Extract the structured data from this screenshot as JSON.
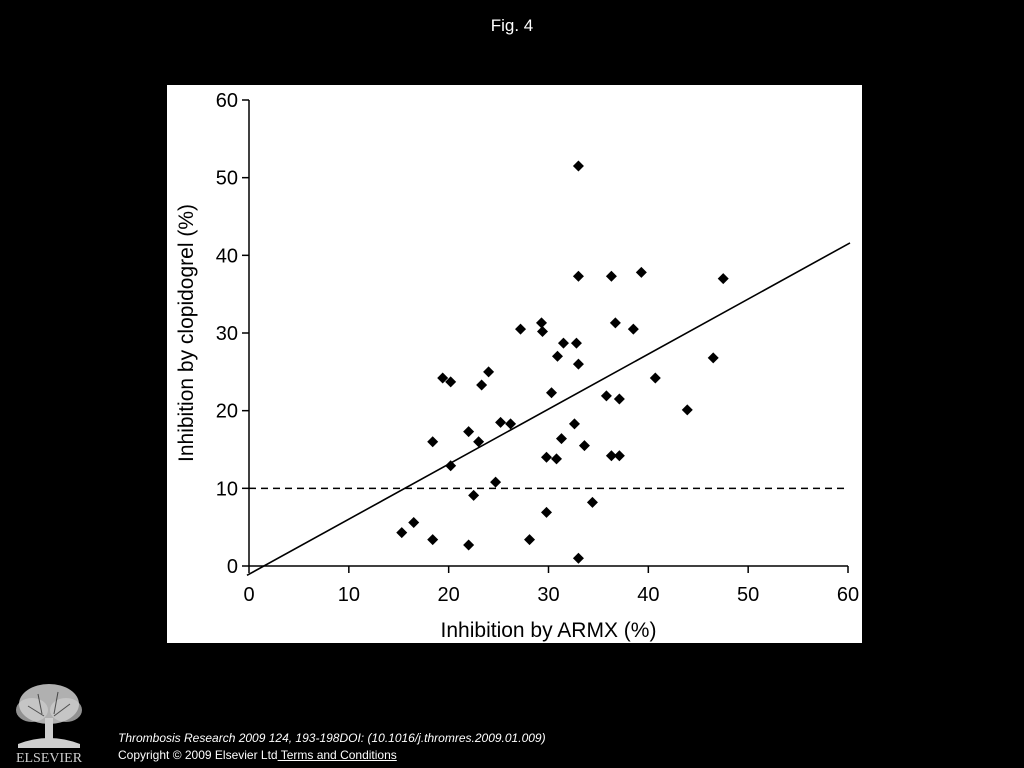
{
  "figure": {
    "title": "Fig. 4",
    "citation": "Thrombosis Research 2009 124, 193-198DOI: (10.1016/j.thromres.2009.01.009)",
    "copyright": "Copyright © 2009 Elsevier Ltd",
    "terms_link": " Terms and Conditions",
    "publisher_logo_text": "ELSEVIER"
  },
  "chart_data": {
    "type": "scatter",
    "title": "",
    "xlabel": "Inhibition by ARMX (%)",
    "ylabel": "Inhibition by clopidogrel (%)",
    "xlim": [
      0,
      60
    ],
    "ylim": [
      0,
      60
    ],
    "xticks": [
      0,
      10,
      20,
      30,
      40,
      50,
      60
    ],
    "yticks": [
      0,
      10,
      20,
      30,
      40,
      50,
      60
    ],
    "grid": false,
    "legend": "none",
    "points": [
      [
        33,
        51.5
      ],
      [
        33,
        37.3
      ],
      [
        36.3,
        37.3
      ],
      [
        39.3,
        37.8
      ],
      [
        47.5,
        37
      ],
      [
        27.2,
        30.5
      ],
      [
        29.3,
        31.3
      ],
      [
        29.4,
        30.2
      ],
      [
        36.7,
        31.3
      ],
      [
        38.5,
        30.5
      ],
      [
        31.5,
        28.7
      ],
      [
        32.8,
        28.7
      ],
      [
        30.9,
        27
      ],
      [
        33,
        26
      ],
      [
        46.5,
        26.8
      ],
      [
        19.4,
        24.2
      ],
      [
        20.2,
        23.7
      ],
      [
        23.3,
        23.3
      ],
      [
        24,
        25
      ],
      [
        30.3,
        22.3
      ],
      [
        35.8,
        21.9
      ],
      [
        37.1,
        21.5
      ],
      [
        40.7,
        24.2
      ],
      [
        43.9,
        20.1
      ],
      [
        25.2,
        18.5
      ],
      [
        26.2,
        18.3
      ],
      [
        32.6,
        18.3
      ],
      [
        22,
        17.3
      ],
      [
        18.4,
        16
      ],
      [
        23,
        16
      ],
      [
        31.3,
        16.4
      ],
      [
        33.6,
        15.5
      ],
      [
        20.2,
        12.9
      ],
      [
        29.8,
        14
      ],
      [
        30.8,
        13.8
      ],
      [
        36.3,
        14.2
      ],
      [
        37.1,
        14.2
      ],
      [
        24.7,
        10.8
      ],
      [
        22.5,
        9.1
      ],
      [
        34.4,
        8.2
      ],
      [
        29.8,
        6.9
      ],
      [
        16.5,
        5.6
      ],
      [
        15.3,
        4.3
      ],
      [
        18.4,
        3.4
      ],
      [
        22,
        2.7
      ],
      [
        28.1,
        3.4
      ],
      [
        33,
        1
      ]
    ],
    "regression_line": {
      "x": [
        -0.2,
        60.2
      ],
      "y": [
        -1.2,
        41.6
      ]
    },
    "reference_line": {
      "y": 10,
      "style": "dashed"
    },
    "colors": {
      "points": "#000000",
      "lines": "#000000",
      "panel": "#ffffff",
      "background": "#000000"
    }
  }
}
